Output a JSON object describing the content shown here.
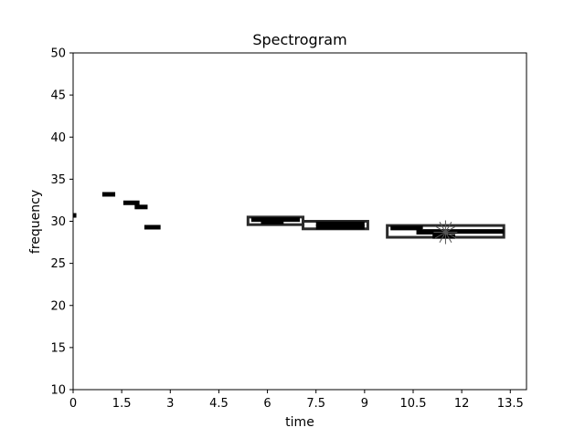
{
  "chart_data": {
    "type": "scatter",
    "title": "Spectrogram",
    "xlabel": "time",
    "ylabel": "frequency",
    "xlim": [
      0,
      14
    ],
    "ylim": [
      10,
      50
    ],
    "xticks": [
      "0",
      "1.5",
      "3",
      "4.5",
      "6",
      "7.5",
      "9",
      "10.5",
      "12",
      "13.5"
    ],
    "yticks": [
      "10",
      "15",
      "20",
      "25",
      "30",
      "35",
      "40",
      "45",
      "50"
    ],
    "grid": false,
    "segments": [
      {
        "x0": 0.0,
        "x1": 0.1,
        "y": 30.7
      },
      {
        "x0": 0.9,
        "x1": 1.3,
        "y": 33.2
      },
      {
        "x0": 1.55,
        "x1": 2.05,
        "y": 32.2
      },
      {
        "x0": 1.9,
        "x1": 2.3,
        "y": 31.7
      },
      {
        "x0": 2.2,
        "x1": 2.7,
        "y": 29.3
      },
      {
        "x0": 5.5,
        "x1": 7.0,
        "y": 30.2
      },
      {
        "x0": 5.8,
        "x1": 6.5,
        "y": 29.9
      },
      {
        "x0": 7.5,
        "x1": 9.0,
        "y": 29.7
      },
      {
        "x0": 7.5,
        "x1": 9.0,
        "y": 29.3
      },
      {
        "x0": 9.8,
        "x1": 10.8,
        "y": 29.2
      },
      {
        "x0": 10.8,
        "x1": 13.3,
        "y": 28.8
      },
      {
        "x0": 10.6,
        "x1": 11.5,
        "y": 28.7
      },
      {
        "x0": 11.1,
        "x1": 11.8,
        "y": 28.2
      }
    ],
    "boxes": [
      {
        "x0": 5.4,
        "x1": 7.1,
        "y0": 29.6,
        "y1": 30.5
      },
      {
        "x0": 7.1,
        "x1": 9.1,
        "y0": 29.1,
        "y1": 30.0
      },
      {
        "x0": 9.7,
        "x1": 13.3,
        "y0": 28.1,
        "y1": 29.5
      }
    ],
    "markers": [
      {
        "x": 11.5,
        "y": 28.7,
        "shape": "star"
      }
    ]
  }
}
